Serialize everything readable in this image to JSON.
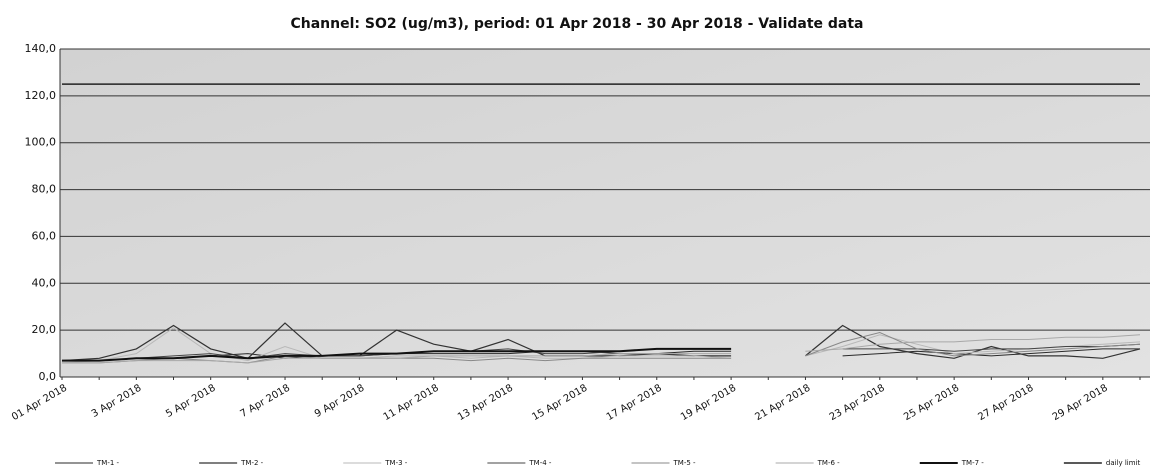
{
  "chart_data": {
    "type": "line",
    "title": "Channel: SO2 (ug/m3), period: 01 Apr 2018 - 30 Apr 2018 - Validate data",
    "categories": [
      "01 Apr 2018",
      null,
      "3 Apr 2018",
      null,
      "5 Apr 2018",
      null,
      "7 Apr 2018",
      null,
      "9 Apr 2018",
      null,
      "11 Apr 2018",
      null,
      "13 Apr 2018",
      null,
      "15 Apr 2018",
      null,
      "17 Apr 2018",
      null,
      "19 Apr 2018",
      null,
      "21 Apr 2018",
      null,
      "23 Apr 2018",
      null,
      "25 Apr 2018",
      null,
      "27 Apr 2018",
      null,
      "29 Apr 2018",
      null
    ],
    "ylim": [
      0,
      140
    ],
    "yticks": [
      {
        "value": 0,
        "label": "0,0"
      },
      {
        "value": 20,
        "label": "20,0"
      },
      {
        "value": 40,
        "label": "40,0"
      },
      {
        "value": 60,
        "label": "60,0"
      },
      {
        "value": 80,
        "label": "80,0"
      },
      {
        "value": 100,
        "label": "100,0"
      },
      {
        "value": 120,
        "label": "120,0"
      },
      {
        "value": 140,
        "label": "140,0"
      }
    ],
    "grid": true,
    "series": [
      {
        "name": "TM-1 -",
        "color": "#2a2a2a",
        "width": 1,
        "values": [
          7,
          7,
          8,
          8,
          9,
          10,
          8,
          9,
          9,
          10,
          10,
          10,
          10,
          11,
          11,
          10,
          10,
          11,
          11,
          null,
          null,
          9,
          10,
          11,
          10,
          9,
          10,
          11,
          12,
          12
        ]
      },
      {
        "name": "TM-2 -",
        "color": "#333333",
        "width": 1.2,
        "values": [
          7,
          8,
          12,
          22,
          12,
          8,
          23,
          9,
          9,
          20,
          14,
          11,
          16,
          9,
          9,
          9,
          10,
          9,
          9,
          null,
          9,
          22,
          13,
          10,
          8,
          13,
          9,
          9,
          8,
          12
        ]
      },
      {
        "name": "TM-3 -",
        "color": "#b8b8b8",
        "width": 1,
        "values": [
          6,
          7,
          10,
          21,
          10,
          7,
          13,
          8,
          8,
          9,
          9,
          8,
          9,
          8,
          8,
          9,
          9,
          9,
          8,
          null,
          9,
          13,
          18,
          14,
          10,
          11,
          12,
          13,
          14,
          15
        ]
      },
      {
        "name": "TM-4 -",
        "color": "#444444",
        "width": 1,
        "values": [
          7,
          7,
          8,
          9,
          10,
          8,
          10,
          9,
          9,
          10,
          11,
          11,
          12,
          10,
          10,
          11,
          12,
          12,
          12,
          null,
          null,
          12,
          12,
          12,
          11,
          12,
          12,
          13,
          13,
          14
        ]
      },
      {
        "name": "TM-5 -",
        "color": "#888888",
        "width": 1,
        "values": [
          6,
          6,
          7,
          8,
          7,
          6,
          9,
          8,
          8,
          8,
          8,
          7,
          8,
          7,
          8,
          8,
          8,
          8,
          8,
          null,
          9,
          15,
          19,
          12,
          9,
          10,
          11,
          12,
          13,
          14
        ]
      },
      {
        "name": "TM-6 -",
        "color": "#a8a8a8",
        "width": 1,
        "values": [
          6,
          6,
          7,
          7,
          7,
          6,
          8,
          8,
          8,
          8,
          9,
          9,
          9,
          9,
          9,
          10,
          10,
          10,
          10,
          null,
          11,
          12,
          14,
          15,
          15,
          16,
          16,
          17,
          17,
          18
        ]
      },
      {
        "name": "TM-7 -",
        "color": "#111111",
        "width": 2,
        "values": [
          7,
          7,
          8,
          8,
          9,
          8,
          9,
          9,
          10,
          10,
          11,
          11,
          11,
          11,
          11,
          11,
          12,
          12,
          12,
          null,
          null,
          null,
          null,
          null,
          null,
          null,
          null,
          null,
          null,
          null
        ]
      },
      {
        "name": "daily limit",
        "color": "#222222",
        "width": 1.5,
        "values": [
          125,
          125,
          125,
          125,
          125,
          125,
          125,
          125,
          125,
          125,
          125,
          125,
          125,
          125,
          125,
          125,
          125,
          125,
          125,
          125,
          125,
          125,
          125,
          125,
          125,
          125,
          125,
          125,
          125,
          125
        ]
      }
    ]
  }
}
